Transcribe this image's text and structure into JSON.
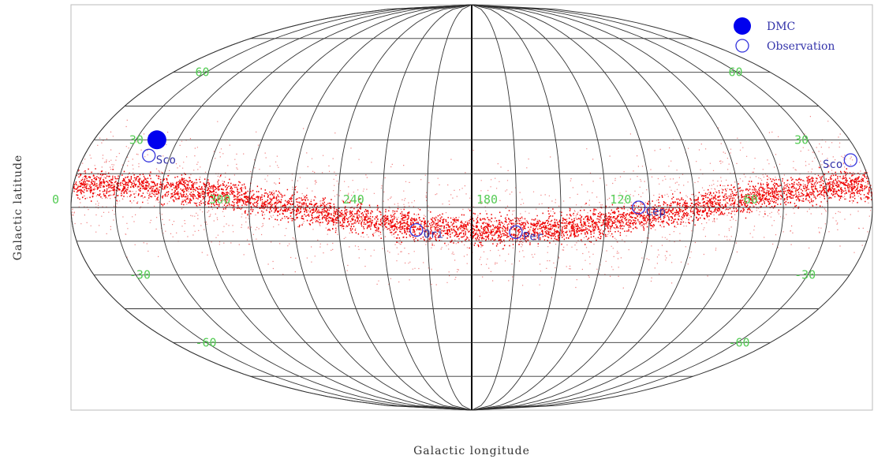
{
  "chart_data": {
    "type": "scatter",
    "projection": "aitoff",
    "xlabel": "Galactic longitude",
    "ylabel": "Galactic latitude",
    "longitude_ticks": [
      {
        "lon": 300,
        "label": "300"
      },
      {
        "lon": 240,
        "label": "240"
      },
      {
        "lon": 180,
        "label": "180"
      },
      {
        "lon": 120,
        "label": "120"
      },
      {
        "lon": 60,
        "label": "60"
      },
      {
        "lon": 360,
        "label": "0"
      }
    ],
    "latitude_ticks": [
      {
        "lat": 60,
        "label_left": "60",
        "label_right": "60"
      },
      {
        "lat": 30,
        "label_left": "30",
        "label_right": "30"
      },
      {
        "lat": -30,
        "label_left": "-30",
        "label_right": "-30"
      },
      {
        "lat": -60,
        "label_left": "-60",
        "label_right": "-60"
      }
    ],
    "legend": {
      "position": "top-right",
      "entries": [
        {
          "label": "DMC",
          "marker": "filled-circle",
          "color": "#0000ee"
        },
        {
          "label": "Observation",
          "marker": "open-circle",
          "color": "#3333dd"
        }
      ]
    },
    "dmc_points": [
      {
        "lon": 330,
        "lat": 30
      }
    ],
    "observations": [
      {
        "name": "Sco",
        "lon": 330,
        "lat": 23
      },
      {
        "name": "Ori",
        "lon": 205,
        "lat": -10
      },
      {
        "name": "Per",
        "lon": 160,
        "lat": -11
      },
      {
        "name": "Cep",
        "lon": 105,
        "lat": 0
      },
      {
        "name": "Sco",
        "lon": 5,
        "lat": 21
      }
    ],
    "band_color": "#ee0000",
    "grid": true
  }
}
